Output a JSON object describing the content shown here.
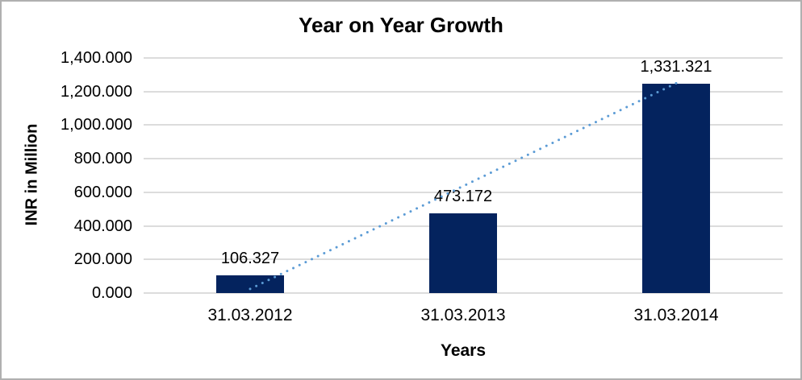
{
  "chart_data": {
    "type": "bar",
    "title": "Year on Year Growth",
    "xlabel": "Years",
    "ylabel": "INR in Million",
    "categories": [
      "31.03.2012",
      "31.03.2013",
      "31.03.2014"
    ],
    "values": [
      106.327,
      473.172,
      1331.321
    ],
    "value_labels": [
      "106.327",
      "473.172",
      "1,331.321"
    ],
    "ylim": [
      0,
      1400
    ],
    "ytick_step": 200,
    "ytick_labels": [
      "1,400.000",
      "1,200.000",
      "1,000.000",
      "800.000",
      "600.000",
      "400.000",
      "200.000",
      "0.000"
    ],
    "grid": "horizontal",
    "legend": "none",
    "bar_color": "#04235e",
    "gridline_color": "#dcdcdc",
    "trendline": {
      "type": "linear",
      "style": "dotted",
      "color": "#5b9bd5"
    }
  }
}
